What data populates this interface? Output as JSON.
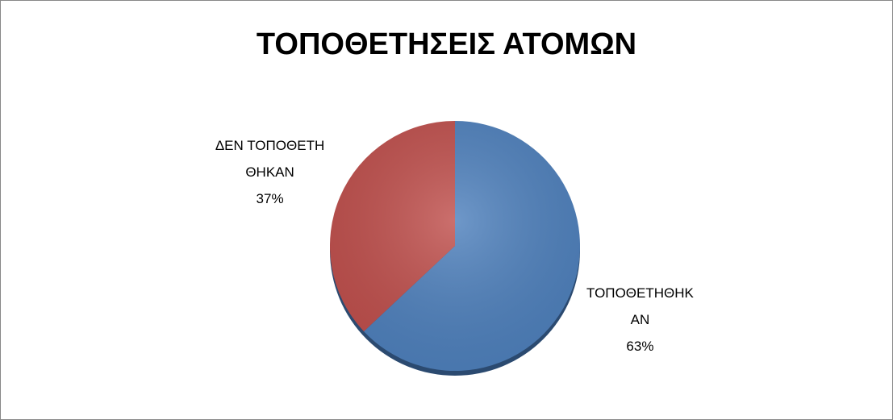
{
  "chart_data": {
    "type": "pie",
    "title": "ΤΟΠΟΘΕΤΗΣΕΙΣ ΑΤΟΜΩΝ",
    "categories": [
      "ΤΟΠΟΘΕΤΗΘΗΚΑΝ",
      "ΔΕΝ ΤΟΠΟΘΕΤΗΘΗΚΑΝ"
    ],
    "values": [
      63,
      37
    ],
    "value_labels": [
      "63%",
      "37%"
    ],
    "colors": [
      "#4f81bd",
      "#c0504d"
    ]
  }
}
